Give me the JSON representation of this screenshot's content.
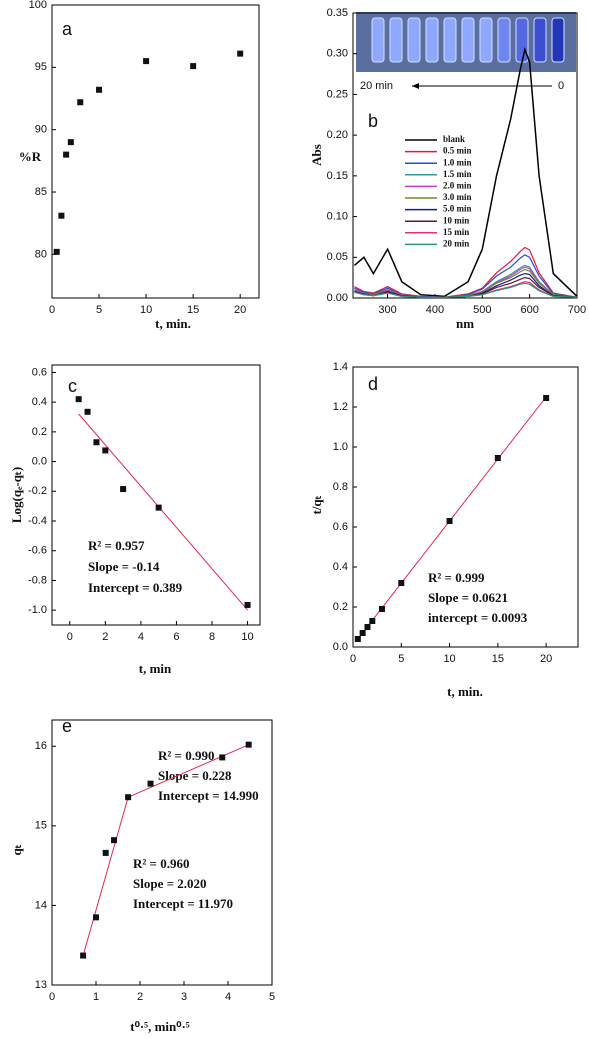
{
  "chart_data": [
    {
      "type": "scatter",
      "panel": "a",
      "x_label": "t, min.",
      "y_label": "%R",
      "x": [
        0.5,
        1,
        1.5,
        2,
        3,
        5,
        10,
        15,
        20
      ],
      "values": [
        80.2,
        83.1,
        88,
        89,
        92.2,
        93.2,
        95.5,
        95.1,
        96.1
      ],
      "marker_color": "#111111",
      "xlim": [
        0,
        22
      ],
      "xticks": [
        0,
        5,
        10,
        15,
        20
      ],
      "ylim": [
        76.5,
        100
      ],
      "yticks": [
        80,
        85,
        90,
        95,
        100
      ]
    },
    {
      "type": "line",
      "panel": "b",
      "x_label": "nm",
      "y_label": "Abs",
      "inset_labels": [
        "20 min",
        "0"
      ],
      "x": [
        230,
        250,
        270,
        300,
        330,
        370,
        420,
        470,
        500,
        530,
        560,
        580,
        590,
        600,
        620,
        650,
        700
      ],
      "series": [
        {
          "name": "blank",
          "color": "#000000",
          "values": [
            0.04,
            0.05,
            0.03,
            0.06,
            0.02,
            0.004,
            0.002,
            0.02,
            0.06,
            0.15,
            0.22,
            0.28,
            0.305,
            0.29,
            0.15,
            0.03,
            0.002
          ]
        },
        {
          "name": "0.5 min",
          "color": "#e8173c",
          "values": [
            0.014,
            0.008,
            0.006,
            0.014,
            0.005,
            0.002,
            0.001,
            0.005,
            0.012,
            0.031,
            0.045,
            0.057,
            0.062,
            0.059,
            0.031,
            0.006,
            0.001
          ]
        },
        {
          "name": "1.0 min",
          "color": "#2b4bd8",
          "values": [
            0.012,
            0.007,
            0.005,
            0.012,
            0.004,
            0.002,
            0.001,
            0.004,
            0.011,
            0.027,
            0.038,
            0.049,
            0.053,
            0.05,
            0.027,
            0.005,
            0.001
          ]
        },
        {
          "name": "1.5 min",
          "color": "#2aa09a",
          "values": [
            0.01,
            0.006,
            0.004,
            0.01,
            0.004,
            0.001,
            0.001,
            0.003,
            0.008,
            0.02,
            0.029,
            0.037,
            0.04,
            0.038,
            0.02,
            0.004,
            0.001
          ]
        },
        {
          "name": "2.0 min",
          "color": "#c83cc8",
          "values": [
            0.01,
            0.006,
            0.004,
            0.01,
            0.004,
            0.001,
            0.001,
            0.003,
            0.008,
            0.019,
            0.027,
            0.035,
            0.038,
            0.036,
            0.019,
            0.004,
            0.001
          ]
        },
        {
          "name": "3.0 min",
          "color": "#6b8e23",
          "values": [
            0.009,
            0.005,
            0.004,
            0.009,
            0.003,
            0.001,
            0.001,
            0.003,
            0.007,
            0.018,
            0.025,
            0.032,
            0.035,
            0.033,
            0.018,
            0.004,
            0.001
          ]
        },
        {
          "name": "5.0 min",
          "color": "#1a1a8c",
          "values": [
            0.008,
            0.005,
            0.003,
            0.008,
            0.003,
            0.001,
            0.001,
            0.002,
            0.006,
            0.015,
            0.022,
            0.028,
            0.03,
            0.029,
            0.015,
            0.003,
            0.001
          ]
        },
        {
          "name": "10 min",
          "color": "#5a1a3a",
          "values": [
            0.008,
            0.004,
            0.003,
            0.007,
            0.003,
            0.001,
            0.001,
            0.002,
            0.005,
            0.013,
            0.018,
            0.023,
            0.025,
            0.024,
            0.013,
            0.003,
            0.001
          ]
        },
        {
          "name": "15 min",
          "color": "#e0307a",
          "values": [
            0.007,
            0.004,
            0.003,
            0.006,
            0.002,
            0.001,
            0.001,
            0.002,
            0.004,
            0.01,
            0.014,
            0.018,
            0.02,
            0.019,
            0.01,
            0.002,
            0.001
          ]
        },
        {
          "name": "20 min",
          "color": "#2a9a6a",
          "values": [
            0.007,
            0.004,
            0.003,
            0.006,
            0.002,
            0.001,
            0.001,
            0.002,
            0.004,
            0.009,
            0.013,
            0.017,
            0.018,
            0.017,
            0.009,
            0.002,
            0.001
          ]
        }
      ],
      "xlim": [
        227,
        700
      ],
      "xticks": [
        300,
        400,
        500,
        600,
        700
      ],
      "ylim": [
        0,
        0.35
      ],
      "yticks": [
        {
          "value": 0,
          "label": "0.00"
        },
        0.05,
        {
          "value": 0.1,
          "label": "0.10"
        },
        0.15,
        {
          "value": 0.2,
          "label": "0.20"
        },
        0.25,
        {
          "value": 0.3,
          "label": "0.30"
        },
        0.35
      ]
    },
    {
      "type": "scatter",
      "panel": "c",
      "x_label": "t, min",
      "y_label": "Log(qₑ-qₜ)",
      "x": [
        0.5,
        1,
        1.5,
        2,
        3,
        5,
        10
      ],
      "values": [
        0.42,
        0.335,
        0.13,
        0.075,
        -0.185,
        -0.31,
        -0.965
      ],
      "marker_color": "#111111",
      "fits": [
        {
          "x": [
            0.5,
            10
          ],
          "values": [
            0.32,
            -1.0
          ],
          "color": "#e8264a"
        }
      ],
      "annotations": [
        "R² = 0.957",
        "Slope = -0.14",
        "Intercept = 0.389"
      ],
      "xlim": [
        -1,
        10.7
      ],
      "xticks": [
        0,
        2,
        4,
        6,
        8,
        10
      ],
      "ylim": [
        -1.1,
        0.65
      ],
      "yticks": [
        {
          "value": -1,
          "label": "-1.0"
        },
        -0.8,
        -0.6,
        -0.4,
        -0.2,
        {
          "value": 0,
          "label": "0.0"
        },
        0.2,
        0.4,
        0.6
      ]
    },
    {
      "type": "scatter",
      "panel": "d",
      "x_label": "t, min.",
      "y_label": "t/qₜ",
      "x": [
        0.5,
        1,
        1.5,
        2,
        3,
        5,
        10,
        15,
        20
      ],
      "values": [
        0.04,
        0.07,
        0.1,
        0.13,
        0.19,
        0.32,
        0.63,
        0.945,
        1.245
      ],
      "marker_color": "#111111",
      "fits": [
        {
          "x": [
            0.5,
            20
          ],
          "values": [
            0.04,
            1.25
          ],
          "color": "#e8264a"
        }
      ],
      "annotations": [
        "R² = 0.999",
        "Slope = 0.0621",
        "intercept = 0.0093"
      ],
      "xlim": [
        0,
        23.3
      ],
      "xticks": [
        0,
        5,
        10,
        15,
        20
      ],
      "ylim": [
        0,
        1.4
      ],
      "yticks": [
        {
          "value": 0,
          "label": "0.0"
        },
        0.2,
        0.4,
        0.6,
        0.8,
        {
          "value": 1,
          "label": "1.0"
        },
        1.2,
        1.4
      ]
    },
    {
      "type": "scatter",
      "panel": "e",
      "x_label": "t⁰·⁵, min⁰·⁵",
      "y_label": "qₜ",
      "x": [
        0.707,
        1,
        1.22,
        1.41,
        1.73,
        2.24,
        3.87,
        4.47
      ],
      "values": [
        13.37,
        13.85,
        14.66,
        14.82,
        15.36,
        15.53,
        15.86,
        16.02
      ],
      "marker_color": "#111111",
      "fits": [
        {
          "x": [
            0.707,
            1.73
          ],
          "values": [
            13.37,
            15.36
          ],
          "color": "#e8264a"
        },
        {
          "x": [
            1.73,
            4.47
          ],
          "values": [
            15.36,
            16.02
          ],
          "color": "#e8264a"
        }
      ],
      "annotations": [
        "R² = 0.990",
        "Slope = 0.228",
        "Intercept = 14.990",
        "R² = 0.960",
        "Slope = 2.020",
        "Intercept = 11.970"
      ],
      "xlim": [
        0,
        5
      ],
      "xticks": [
        0,
        1,
        2,
        3,
        4,
        5
      ],
      "ylim": [
        13,
        16.33
      ],
      "yticks": [
        13,
        14,
        15,
        16
      ]
    }
  ]
}
